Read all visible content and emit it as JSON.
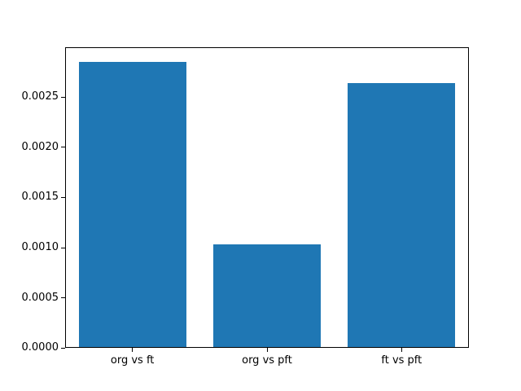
{
  "chart_data": {
    "type": "bar",
    "categories": [
      "org vs ft",
      "org vs pft",
      "ft vs pft"
    ],
    "values": [
      0.00285,
      0.00103,
      0.00264
    ],
    "title": "",
    "xlabel": "",
    "ylabel": "",
    "ylim": [
      0,
      0.003
    ],
    "yticks": [
      0.0,
      0.0005,
      0.001,
      0.0015,
      0.002,
      0.0025
    ],
    "ytick_labels": [
      "0.0000",
      "0.0005",
      "0.0010",
      "0.0015",
      "0.0020",
      "0.0025"
    ],
    "bar_color": "#1f77b4",
    "bar_width_fraction": 0.8,
    "axis_color": "#000000",
    "background_color": "#ffffff",
    "grid": false,
    "legend": false
  }
}
